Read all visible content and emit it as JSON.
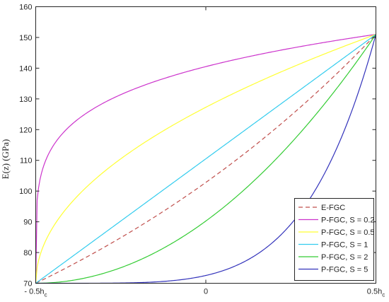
{
  "chart_data": {
    "type": "line",
    "ylabel": "E(z) (GPa)",
    "xlabel": "",
    "xlim": [
      -0.5,
      0.5
    ],
    "ylim": [
      70,
      160
    ],
    "x_ticks": [
      {
        "value": -0.5,
        "main": "- 0.5h",
        "sub": "c"
      },
      {
        "value": 0,
        "main": "0",
        "sub": ""
      },
      {
        "value": 0.5,
        "main": "0.5h",
        "sub": "c"
      }
    ],
    "y_ticks": [
      70,
      80,
      90,
      100,
      110,
      120,
      130,
      140,
      150,
      160
    ],
    "Ec": 70,
    "Em": 151,
    "legend_position": "bottom-right",
    "grid": false,
    "series": [
      {
        "name": "E-FGC",
        "color": "#c0504d",
        "dash": "6,4",
        "kind": "exponential",
        "x": [
          -0.5,
          -0.25,
          0,
          0.25,
          0.5
        ],
        "y": [
          70,
          84.6,
          102.8,
          124.7,
          151
        ]
      },
      {
        "name": "P-FGC, S = 0.2",
        "color": "#cc33cc",
        "dash": "",
        "kind": "power",
        "S": 0.2,
        "x": [
          -0.5,
          -0.25,
          0,
          0.25,
          0.5
        ],
        "y": [
          70,
          132.6,
          140.5,
          146.3,
          151
        ]
      },
      {
        "name": "P-FGC, S = 0.5",
        "color": "#ffff33",
        "dash": "",
        "kind": "power",
        "S": 0.5,
        "x": [
          -0.5,
          -0.25,
          0,
          0.25,
          0.5
        ],
        "y": [
          70,
          110.5,
          127.3,
          140.1,
          151
        ]
      },
      {
        "name": "P-FGC, S = 1",
        "color": "#33ccee",
        "dash": "",
        "kind": "power",
        "S": 1,
        "x": [
          -0.5,
          -0.25,
          0,
          0.25,
          0.5
        ],
        "y": [
          70,
          90.3,
          110.5,
          130.8,
          151
        ]
      },
      {
        "name": "P-FGC, S = 2",
        "color": "#33cc33",
        "dash": "",
        "kind": "power",
        "S": 2,
        "x": [
          -0.5,
          -0.25,
          0,
          0.25,
          0.5
        ],
        "y": [
          70,
          75.1,
          90.3,
          115.6,
          151
        ]
      },
      {
        "name": "P-FGC, S = 5",
        "color": "#3333bb",
        "dash": "",
        "kind": "power",
        "S": 5,
        "x": [
          -0.5,
          -0.25,
          0,
          0.25,
          0.5
        ],
        "y": [
          70,
          70.1,
          72.5,
          89.2,
          151
        ]
      }
    ]
  }
}
